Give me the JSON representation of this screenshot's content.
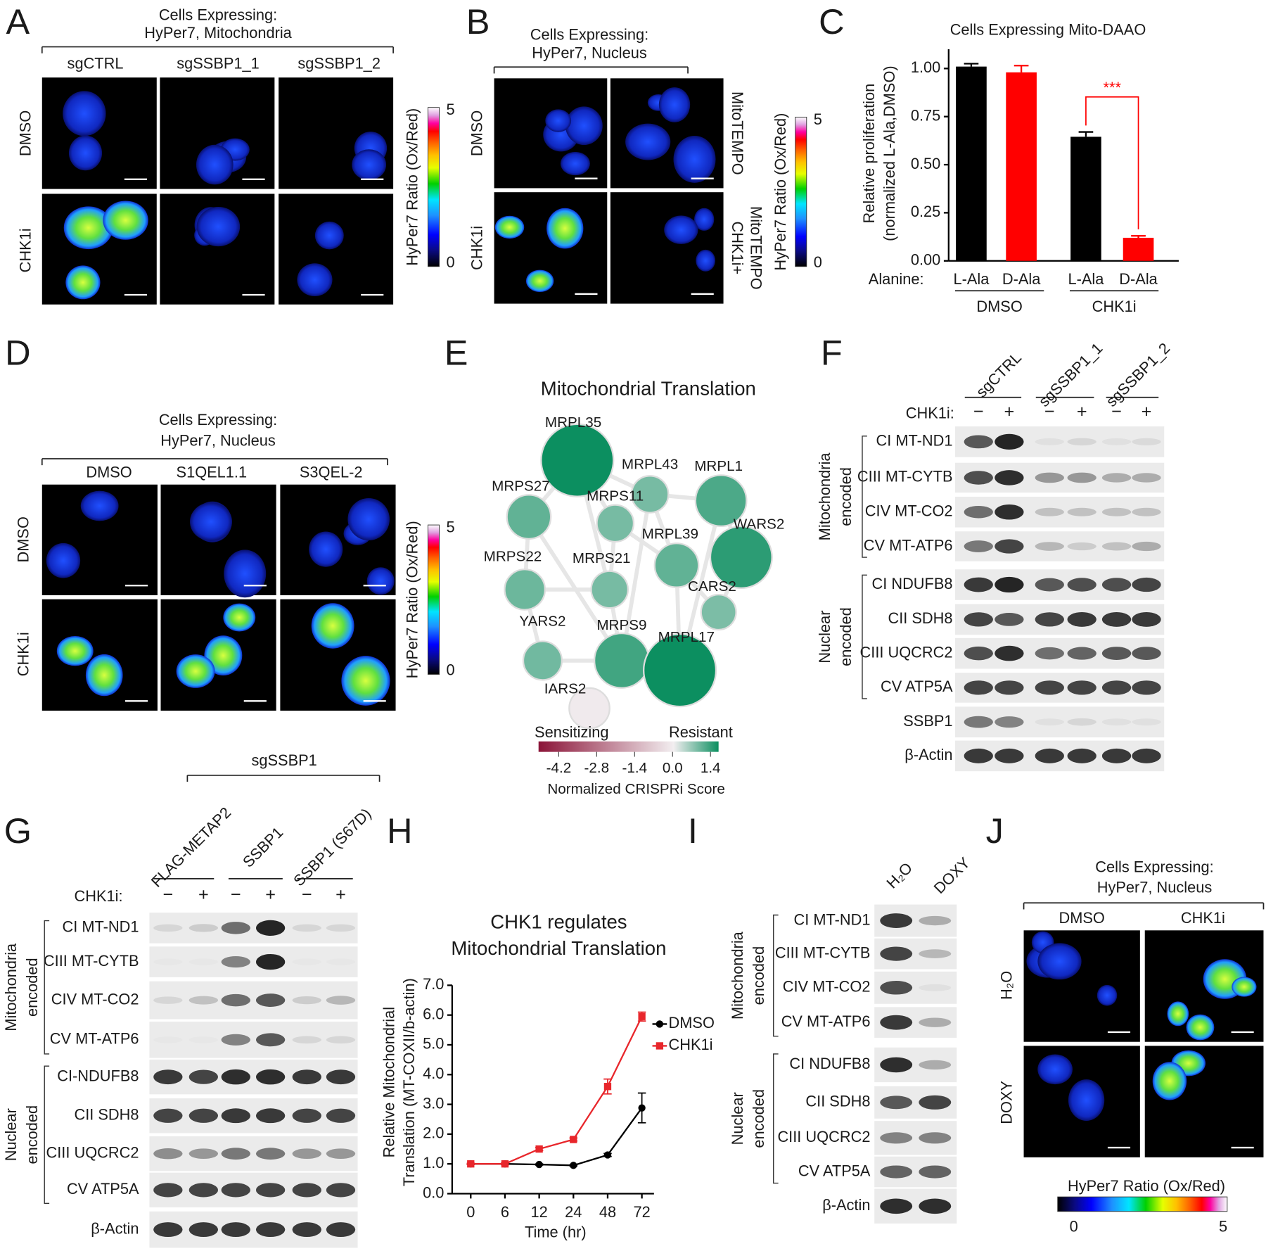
{
  "panels": {
    "A": {
      "label": "A",
      "title": [
        "Cells Expressing:",
        "HyPer7, Mitochondria"
      ],
      "columns": [
        "sgCTRL",
        "sgSSBP1_1",
        "sgSSBP1_2"
      ],
      "rows": [
        "DMSO",
        "CHK1i"
      ],
      "colorbar": {
        "label": "HyPer7 Ratio (Ox/Red)",
        "min": 0,
        "max": 5
      }
    },
    "B": {
      "label": "B",
      "title": [
        "Cells Expressing:",
        "HyPer7, Nucleus"
      ],
      "rows": [
        "DMSO",
        "CHK1i"
      ],
      "right_rows": [
        [
          "MitoTEMPO"
        ],
        [
          "CHK1i+",
          "MitoTEMPO"
        ]
      ],
      "colorbar": {
        "label": "HyPer7 Ratio (Ox/Red)",
        "min": 0,
        "max": 5
      }
    },
    "C": {
      "label": "C"
    },
    "D": {
      "label": "D",
      "title": [
        "Cells Expressing:",
        "HyPer7, Nucleus"
      ],
      "columns": [
        "DMSO",
        "S1QEL1.1",
        "S3QEL-2"
      ],
      "rows": [
        "DMSO",
        "CHK1i"
      ],
      "colorbar": {
        "label": "HyPer7 Ratio (Ox/Red)",
        "min": 0,
        "max": 5
      }
    },
    "E": {
      "label": "E",
      "title": "Mitochondrial Translation",
      "nodes": [
        {
          "label": "MRPL35",
          "score": 1.4
        },
        {
          "label": "MRPL43",
          "score": 0.4
        },
        {
          "label": "MRPL1",
          "score": 0.8
        },
        {
          "label": "MRPS27",
          "score": 0.6
        },
        {
          "label": "MRPS11",
          "score": 0.4
        },
        {
          "label": "MRPL39",
          "score": 0.6
        },
        {
          "label": "WARS2",
          "score": 1.1
        },
        {
          "label": "MRPS22",
          "score": 0.5
        },
        {
          "label": "MRPS21",
          "score": 0.4
        },
        {
          "label": "CARS2",
          "score": 0.35
        },
        {
          "label": "YARS2",
          "score": 0.45
        },
        {
          "label": "MRPS9",
          "score": 0.9
        },
        {
          "label": "MRPL17",
          "score": 1.4
        },
        {
          "label": "IARS2",
          "score": -0.5
        }
      ],
      "legend": {
        "low": "Sensitizing",
        "high": "Resistant",
        "ticks": [
          -4.2,
          -2.8,
          -1.4,
          {
            "value": 0,
            "label": "0.0"
          },
          1.4
        ],
        "label": "Normalized CRISPRi Score"
      }
    },
    "F": {
      "label": "F",
      "columns": [
        "sgCTRL",
        "sgSSBP1_1",
        "sgSSBP1_2"
      ],
      "treatment_label": "CHK1i:",
      "lanes": [
        "−",
        "+",
        "−",
        "+",
        "−",
        "+"
      ],
      "groups": [
        {
          "name": [
            "Mitochondria",
            "encoded"
          ],
          "bands": [
            "CI MT-ND1",
            "CIII MT-CYTB",
            "CIV MT-CO2",
            "CV MT-ATP6"
          ]
        },
        {
          "name": [
            "Nuclear",
            "encoded"
          ],
          "bands": [
            "CI NDUFB8",
            "CII SDH8",
            "CIII UQCRC2",
            "CV ATP5A"
          ]
        }
      ],
      "other_bands": [
        "SSBP1",
        "β-Actin"
      ]
    },
    "G": {
      "label": "G",
      "header": "sgSSBP1",
      "columns": [
        "FLAG-METAP2",
        "SSBP1",
        "SSBP1 (S67D)"
      ],
      "treatment_label": "CHK1i:",
      "lanes": [
        "−",
        "+",
        "−",
        "+",
        "−",
        "+"
      ],
      "groups": [
        {
          "name": [
            "Mitochondria",
            "encoded"
          ],
          "bands": [
            "CI MT-ND1",
            "CIII MT-CYTB",
            "CIV MT-CO2",
            "CV MT-ATP6"
          ]
        },
        {
          "name": [
            "Nuclear",
            "encoded"
          ],
          "bands": [
            "CI-NDUFB8",
            "CII SDH8",
            "CIII UQCRC2",
            "CV ATP5A"
          ]
        }
      ],
      "other_bands": [
        "β-Actin"
      ]
    },
    "H": {
      "label": "H"
    },
    "I": {
      "label": "I",
      "columns": [
        "H₂O",
        "DOXY"
      ],
      "groups": [
        {
          "name": [
            "Mitochondria",
            "encoded"
          ],
          "bands": [
            "CI MT-ND1",
            "CIII MT-CYTB",
            "CIV MT-CO2",
            "CV MT-ATP6"
          ]
        },
        {
          "name": [
            "Nuclear",
            "encoded"
          ],
          "bands": [
            "CI NDUFB8",
            "CII SDH8",
            "CIII UQCRC2",
            "CV ATP5A"
          ]
        }
      ],
      "other_bands": [
        "β-Actin"
      ]
    },
    "J": {
      "label": "J",
      "title": [
        "Cells Expressing:",
        "HyPer7, Nucleus"
      ],
      "columns": [
        "DMSO",
        "CHK1i"
      ],
      "rows": [
        "H₂O",
        "DOXY"
      ],
      "colorbar": {
        "label": "HyPer7 Ratio (Ox/Red)",
        "min": 0,
        "max": 5
      }
    }
  },
  "chart_data": [
    {
      "type": "bar",
      "title": "Cells Expressing Mito-DAAO",
      "ylabel": [
        "Relative proliferation",
        "(normalized L-Ala,DMSO)"
      ],
      "categories": [
        "L-Ala",
        "D-Ala",
        "L-Ala",
        "D-Ala"
      ],
      "values": [
        1.01,
        0.98,
        0.645,
        0.12
      ],
      "errors": [
        0.015,
        0.035,
        0.025,
        0.01
      ],
      "colors": [
        "#000000",
        "#ff0000",
        "#000000",
        "#ff0000"
      ],
      "category_title": "Alanine:",
      "groups": [
        "DMSO",
        "CHK1i"
      ],
      "annotation": "***",
      "ylim": [
        0,
        1.1
      ],
      "yticks": [
        {
          "value": 0,
          "label": "0.00"
        },
        0.25,
        {
          "value": 0.5,
          "label": "0.50"
        },
        0.75,
        {
          "value": 1,
          "label": "1.00"
        }
      ]
    },
    {
      "type": "line",
      "title": [
        "CHK1 regulates",
        "Mitochondrial Translation"
      ],
      "ylabel": [
        "Relative Mitochondrial",
        "Translation (MT-COXII/b-actin)"
      ],
      "xlabel": "Time (hr)",
      "categories": [
        "0",
        "6",
        "12",
        "24",
        "48",
        "72"
      ],
      "series": [
        {
          "name": "DMSO",
          "color": "#000000",
          "values": [
            1.0,
            1.0,
            0.98,
            0.95,
            1.3,
            2.88
          ],
          "errors": [
            0.02,
            0.02,
            0.02,
            0.02,
            0.05,
            0.5
          ]
        },
        {
          "name": "CHK1i",
          "color": "#e8262b",
          "values": [
            1.0,
            1.0,
            1.5,
            1.82,
            3.6,
            5.95
          ],
          "errors": [
            0.02,
            0.03,
            0.05,
            0.05,
            0.25,
            0.15
          ]
        }
      ],
      "ylim": [
        0,
        7
      ],
      "yticks": [
        {
          "value": 0,
          "label": "0.0"
        },
        {
          "value": 1,
          "label": "1.0"
        },
        {
          "value": 2,
          "label": "2.0"
        },
        {
          "value": 3,
          "label": "3.0"
        },
        {
          "value": 4,
          "label": "4.0"
        },
        {
          "value": 5,
          "label": "5.0"
        },
        {
          "value": 6,
          "label": "6.0"
        },
        {
          "value": 7,
          "label": "7.0"
        }
      ]
    }
  ]
}
